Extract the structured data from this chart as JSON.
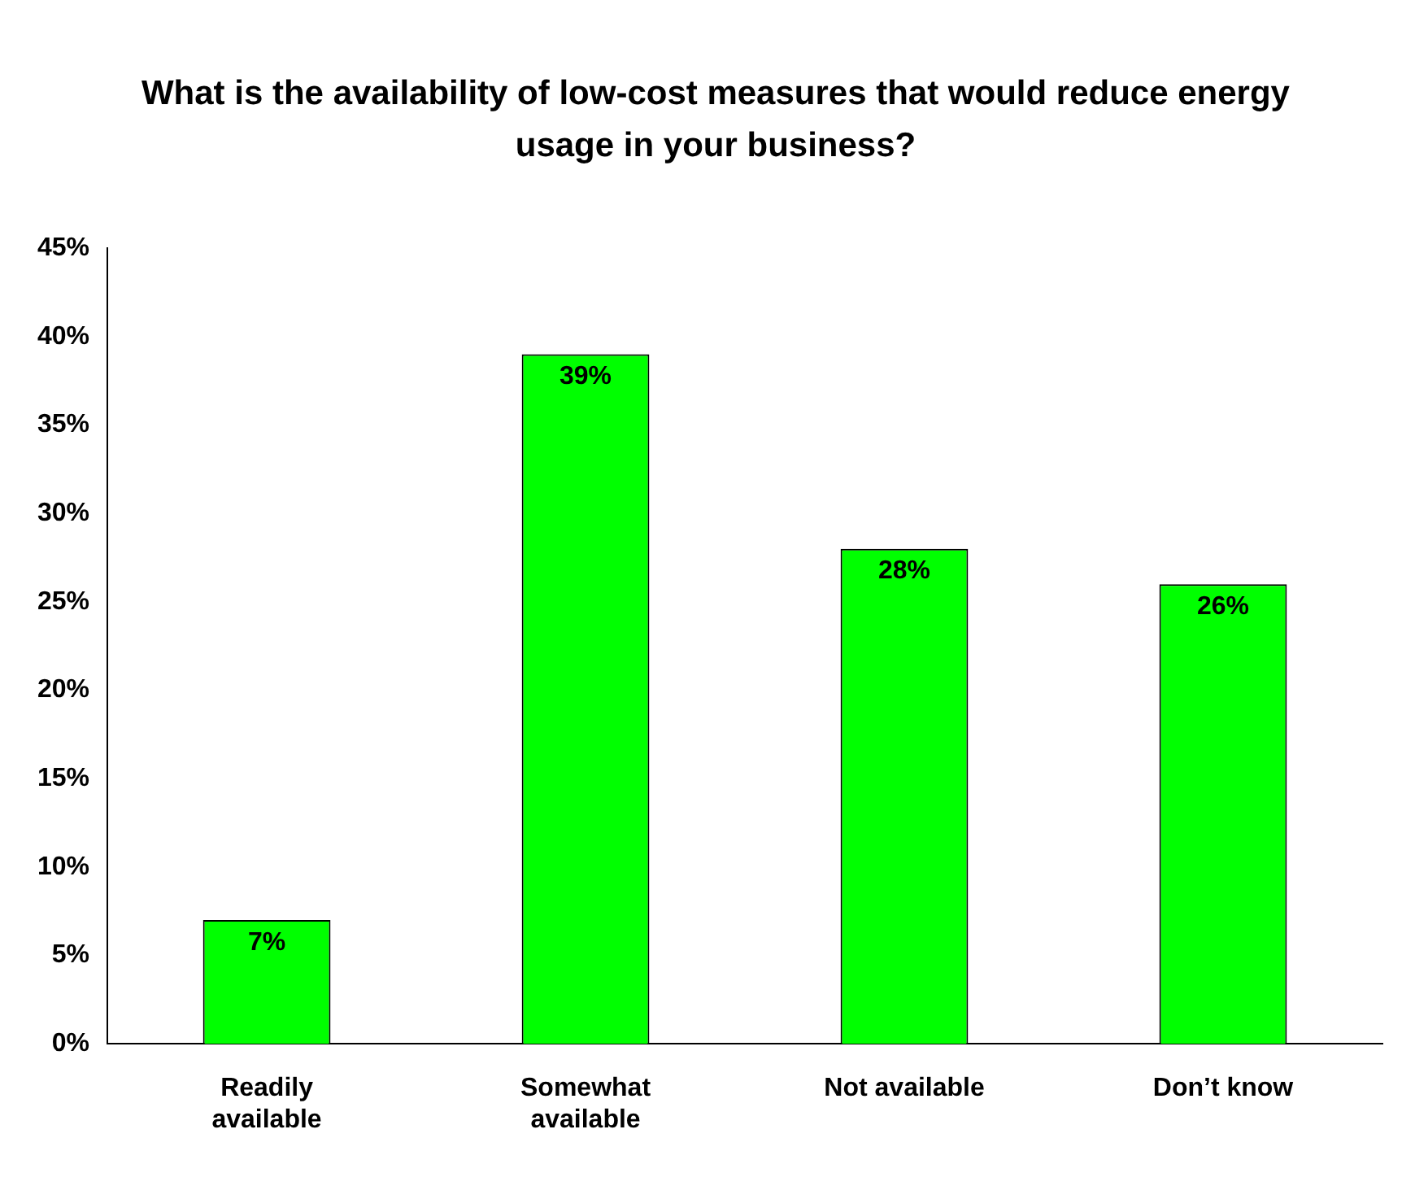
{
  "chart_data": {
    "type": "bar",
    "title": "What is the availability of low-cost measures that would reduce energy usage in your business?",
    "categories": [
      "Readily available",
      "Somewhat available",
      "Not available",
      "Don’t know"
    ],
    "values": [
      7,
      39,
      28,
      26
    ],
    "color": "#00ff00",
    "value_labels": [
      "7%",
      "39%",
      "28%",
      "26%"
    ],
    "ylim": [
      0,
      45
    ],
    "yticks": [
      {
        "value": 0,
        "label": "0%"
      },
      {
        "value": 5,
        "label": "5%"
      },
      {
        "value": 10,
        "label": "10%"
      },
      {
        "value": 15,
        "label": "15%"
      },
      {
        "value": 20,
        "label": "20%"
      },
      {
        "value": 25,
        "label": "25%"
      },
      {
        "value": 30,
        "label": "30%"
      },
      {
        "value": 35,
        "label": "35%"
      },
      {
        "value": 40,
        "label": "40%"
      },
      {
        "value": 45,
        "label": "45%"
      }
    ],
    "grid": false,
    "legend": false
  }
}
